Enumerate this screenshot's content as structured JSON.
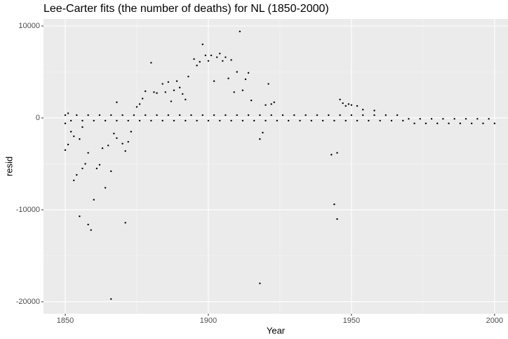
{
  "chart_data": {
    "type": "scatter",
    "title": "Lee-Carter fits (the number of deaths) for NL (1850-2000)",
    "x_label": "Year",
    "y_label": "resid",
    "xlim": [
      1842.4,
      2004.7
    ],
    "ylim": [
      -21300,
      10763
    ],
    "xticks": [
      1850,
      1900,
      1950,
      2000
    ],
    "yticks": [
      -20000,
      -10000,
      0,
      10000
    ],
    "xminor": [
      1875,
      1925,
      1975
    ],
    "yminor": [
      -15000,
      -5000,
      5000
    ],
    "grid": true,
    "color": "#000000",
    "x": [
      1850,
      1850,
      1851,
      1851,
      1852,
      1853,
      1853,
      1854,
      1855,
      1855,
      1856,
      1856,
      1857,
      1858,
      1858,
      1859,
      1860,
      1861,
      1862,
      1863,
      1864,
      1865,
      1866,
      1866,
      1867,
      1868,
      1868,
      1870,
      1871,
      1871,
      1872,
      1873,
      1875,
      1876,
      1877,
      1878,
      1880,
      1881,
      1882,
      1884,
      1885,
      1886,
      1887,
      1888,
      1889,
      1890,
      1891,
      1892,
      1893,
      1895,
      1896,
      1897,
      1898,
      1899,
      1900,
      1901,
      1902,
      1903,
      1904,
      1905,
      1906,
      1907,
      1908,
      1909,
      1910,
      1911,
      1912,
      1913,
      1914,
      1915,
      1918,
      1918,
      1919,
      1920,
      1921,
      1922,
      1923,
      1943,
      1944,
      1945,
      1945,
      1946,
      1947,
      1948,
      1949,
      1950,
      1952,
      1954,
      1958,
      1850,
      1852,
      1854,
      1856,
      1858,
      1860,
      1862,
      1864,
      1866,
      1868,
      1870,
      1872,
      1874,
      1876,
      1878,
      1880,
      1882,
      1884,
      1886,
      1888,
      1890,
      1892,
      1894,
      1896,
      1898,
      1900,
      1902,
      1904,
      1906,
      1908,
      1910,
      1912,
      1914,
      1916,
      1918,
      1920,
      1922,
      1924,
      1926,
      1928,
      1930,
      1932,
      1934,
      1936,
      1938,
      1940,
      1942,
      1944,
      1946,
      1948,
      1950,
      1952,
      1954,
      1956,
      1958,
      1960,
      1962,
      1964,
      1966,
      1968,
      1970,
      1972,
      1974,
      1976,
      1978,
      1980,
      1982,
      1984,
      1986,
      1988,
      1990,
      1992,
      1994,
      1996,
      1998,
      2000
    ],
    "values": [
      -3500,
      -600,
      500,
      -2900,
      -1500,
      -6800,
      -2000,
      -6200,
      -10700,
      -2300,
      -5500,
      -1000,
      -5000,
      -11600,
      -3800,
      -12200,
      -8900,
      -5500,
      -5100,
      -3300,
      -7600,
      -3000,
      -19700,
      -5800,
      -1700,
      1700,
      -2200,
      -2800,
      -11400,
      -3600,
      -2600,
      -1500,
      1200,
      1500,
      2100,
      2900,
      6000,
      2800,
      2700,
      3700,
      2800,
      3900,
      1800,
      3000,
      4000,
      3300,
      2600,
      2000,
      4500,
      6400,
      5700,
      6100,
      8000,
      6800,
      6200,
      6800,
      4000,
      6600,
      7000,
      6200,
      6600,
      4300,
      6300,
      2800,
      5000,
      9400,
      3000,
      4200,
      4900,
      1900,
      -18000,
      -2300,
      -1600,
      1400,
      3700,
      1500,
      1700,
      -4000,
      -9400,
      -11000,
      -3800,
      2000,
      1600,
      1300,
      1500,
      1400,
      1300,
      900,
      800,
      300,
      -300,
      300,
      -300,
      300,
      -300,
      300,
      -300,
      300,
      -300,
      300,
      -300,
      300,
      -300,
      300,
      -300,
      300,
      -300,
      300,
      -300,
      300,
      -300,
      300,
      -300,
      300,
      -300,
      300,
      -300,
      300,
      -300,
      300,
      -300,
      300,
      -300,
      300,
      -300,
      300,
      -300,
      300,
      -300,
      300,
      -300,
      300,
      -300,
      300,
      -300,
      300,
      -300,
      300,
      -300,
      300,
      -300,
      300,
      -300,
      300,
      -300,
      300,
      -300,
      300,
      -300,
      -100,
      -600,
      -100,
      -600,
      -100,
      -600,
      -100,
      -600,
      -100,
      -600,
      -100,
      -600,
      -100,
      -600,
      -100,
      -600
    ]
  }
}
